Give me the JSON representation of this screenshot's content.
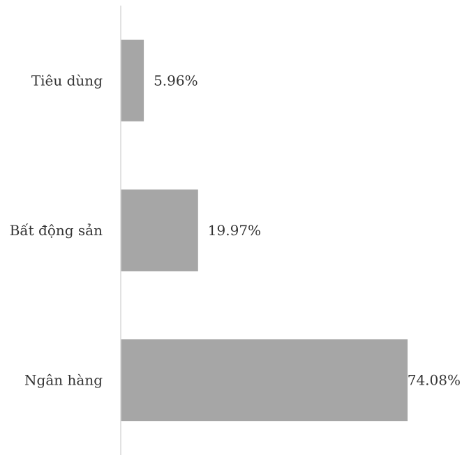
{
  "chart_data": {
    "type": "bar",
    "orientation": "horizontal",
    "categories": [
      "Tiêu dùng",
      "Bất động sản",
      "Ngân hàng"
    ],
    "values": [
      5.96,
      19.97,
      74.08
    ],
    "value_labels": [
      "5.96%",
      "19.97%",
      "74.08%"
    ],
    "title": "",
    "xlabel": "",
    "ylabel": "",
    "xlim": [
      0,
      74.08
    ],
    "grid": false,
    "legend": "none",
    "colors": {
      "bar": "#a6a6a6",
      "axis": "#d9d9d9",
      "text": "#333333"
    }
  }
}
